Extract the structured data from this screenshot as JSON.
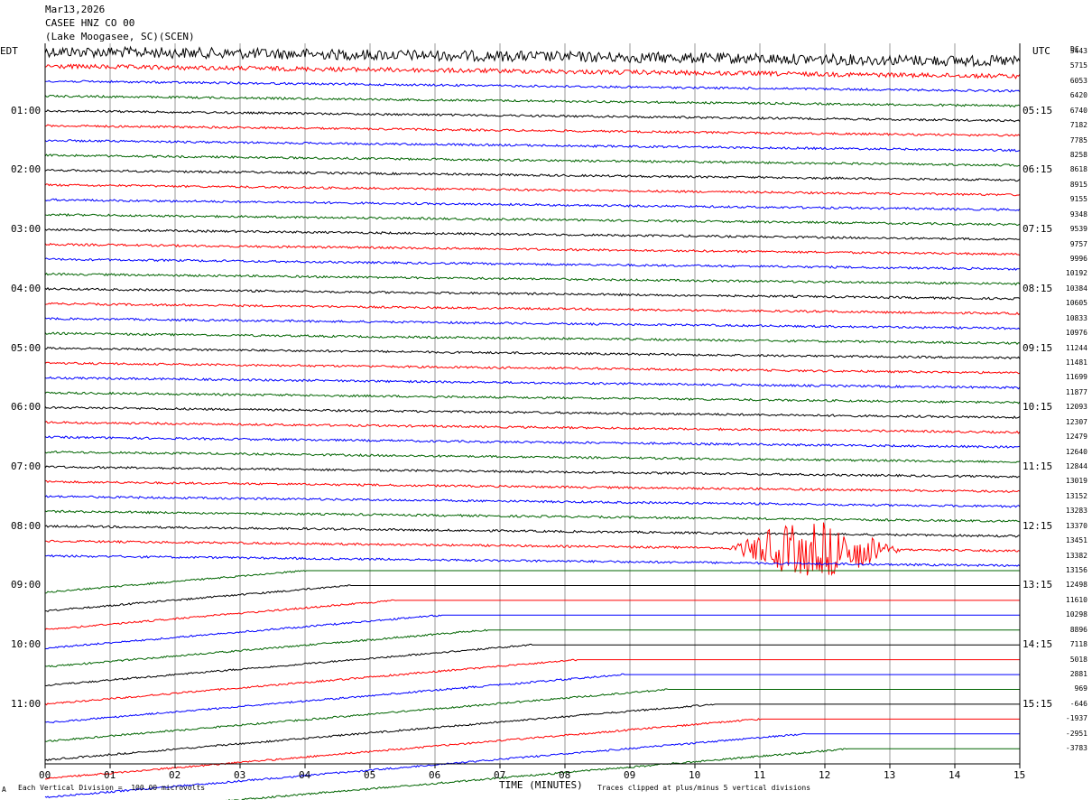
{
  "header": {
    "date": "Mar13,2026",
    "station": "CASEE HNZ CO 00",
    "location": "(Lake Moogasee, SC)(SCEN)"
  },
  "left_tz": "EDT",
  "right_tz": "UTC",
  "dc_label": "DC",
  "footer": {
    "scale_note": "Each Vertical Division =  100.00 microvolts",
    "xaxis_title": "TIME (MINUTES)",
    "clip_note": "Traces clipped at plus/minus 5 vertical divisions",
    "corner_mark": "A"
  },
  "colors": {
    "trace_cycle": [
      "#000000",
      "#ff0000",
      "#0000ff",
      "#006400"
    ],
    "grid": "#808080"
  },
  "chart_data": {
    "type": "line",
    "title": "CASEE HNZ CO 00",
    "xlabel": "TIME (MINUTES)",
    "xlim": [
      0,
      15
    ],
    "x_ticks": [
      "00",
      "01",
      "02",
      "03",
      "04",
      "05",
      "06",
      "07",
      "08",
      "09",
      "10",
      "11",
      "12",
      "13",
      "14",
      "15"
    ],
    "left_hour_labels": [
      "01:00",
      "02:00",
      "03:00",
      "04:00",
      "05:00",
      "06:00",
      "07:00",
      "08:00",
      "09:00",
      "10:00",
      "11:00"
    ],
    "right_hour_labels": [
      "05:15",
      "06:15",
      "07:15",
      "08:15",
      "09:15",
      "10:15",
      "11:15",
      "12:15",
      "13:15",
      "14:15",
      "15:15"
    ],
    "dc_offsets": [
      5443,
      5715,
      6053,
      6420,
      6740,
      7182,
      7785,
      8258,
      8618,
      8915,
      9155,
      9348,
      9539,
      9757,
      9996,
      10192,
      10384,
      10605,
      10833,
      10976,
      11244,
      11481,
      11699,
      11877,
      12093,
      12307,
      12479,
      12640,
      12844,
      13019,
      13152,
      13283,
      13370,
      13451,
      13382,
      13156,
      12498,
      11610,
      10298,
      8896,
      7118,
      5018,
      2881,
      969,
      -646,
      -1937,
      -2951,
      -3783
    ],
    "traces_count": 48,
    "events": [
      {
        "trace": 33,
        "x_start": 10.0,
        "x_end": 13.2,
        "note": "high amplitude burst"
      }
    ]
  }
}
